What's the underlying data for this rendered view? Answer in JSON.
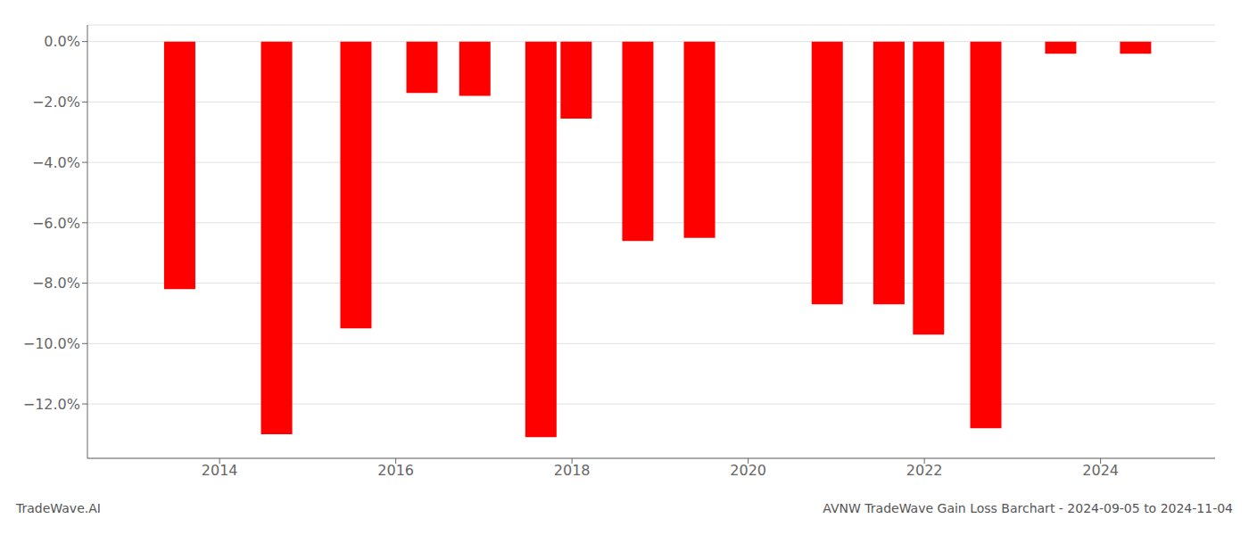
{
  "chart_data": {
    "type": "bar",
    "x": [
      2013.55,
      2014.65,
      2015.55,
      2016.3,
      2016.9,
      2017.65,
      2018.05,
      2018.75,
      2019.45,
      2020.9,
      2021.6,
      2022.05,
      2022.7,
      2023.55,
      2024.4
    ],
    "values": [
      -8.2,
      -13.0,
      -9.5,
      -1.7,
      -1.8,
      -13.1,
      -2.55,
      -6.6,
      -6.5,
      -8.7,
      -8.7,
      -9.7,
      -12.8,
      -0.4,
      -0.4
    ],
    "color": "#ff0000",
    "xlim": [
      2012.5,
      2025.3
    ],
    "xticks": [
      2014,
      2016,
      2018,
      2020,
      2022,
      2024
    ],
    "ylim": [
      -13.8,
      0.55
    ],
    "yticks": [
      {
        "value": 0.0,
        "label": "0.0%"
      },
      {
        "value": -2.0,
        "label": "−2.0%"
      },
      {
        "value": -4.0,
        "label": "−4.0%"
      },
      {
        "value": -6.0,
        "label": "−6.0%"
      },
      {
        "value": -8.0,
        "label": "−8.0%"
      },
      {
        "value": -10.0,
        "label": "−10.0%"
      },
      {
        "value": -12.0,
        "label": "−12.0%"
      }
    ],
    "grid": true,
    "annotations": [
      "TradeWave.AI",
      "AVNW TradeWave Gain Loss Barchart - 2024-09-05 to 2024-11-04"
    ]
  }
}
